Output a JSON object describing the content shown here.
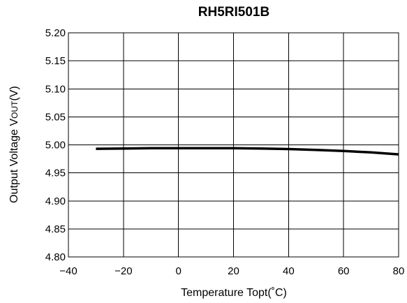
{
  "chart_data": {
    "type": "line",
    "title": "RH5RI501B",
    "xlabel": "Temperature Topt(˚C)",
    "ylabel": "Output Voltage Vout(V)",
    "xlim": [
      -40,
      80
    ],
    "ylim": [
      4.8,
      5.2
    ],
    "xticks": [
      -40,
      -20,
      0,
      20,
      40,
      60,
      80
    ],
    "yticks": [
      4.8,
      4.85,
      4.9,
      4.95,
      5.0,
      5.05,
      5.1,
      5.15,
      5.2
    ],
    "xtick_labels": [
      "−40",
      "−20",
      "0",
      "20",
      "40",
      "60",
      "80"
    ],
    "ytick_labels": [
      "4.80",
      "4.85",
      "4.90",
      "4.95",
      "5.00",
      "5.05",
      "5.10",
      "5.15",
      "5.20"
    ],
    "grid": true,
    "series": [
      {
        "x": [
          -30,
          -20,
          -10,
          0,
          10,
          20,
          30,
          40,
          50,
          60,
          70,
          80
        ],
        "y": [
          4.993,
          4.9935,
          4.994,
          4.9942,
          4.9942,
          4.994,
          4.9935,
          4.9925,
          4.991,
          4.989,
          4.9865,
          4.983
        ]
      }
    ]
  }
}
